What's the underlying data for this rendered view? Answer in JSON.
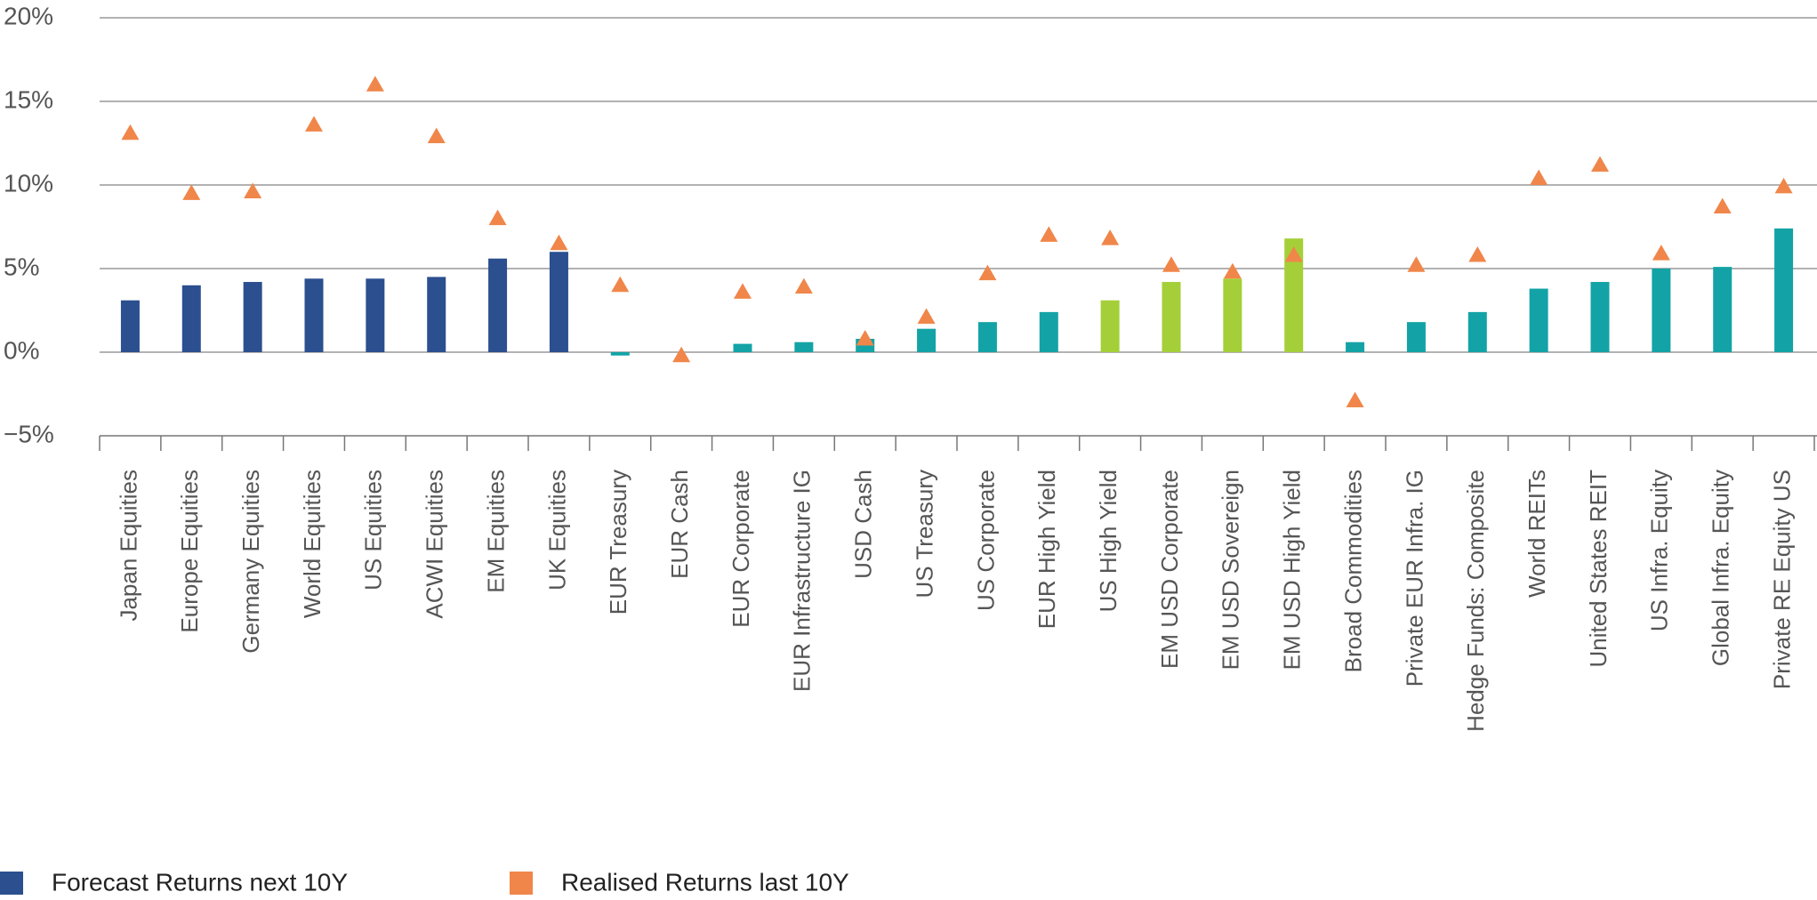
{
  "chart_data": {
    "type": "bar",
    "categories": [
      "Japan Equities",
      "Europe Equities",
      "Germany Equities",
      "World Equities",
      "US Equities",
      "ACWI Equities",
      "EM Equities",
      "UK Equities",
      "EUR Treasury",
      "EUR Cash",
      "EUR Corporate",
      "EUR Infrastructure IG",
      "USD Cash",
      "US Treasury",
      "US Corporate",
      "EUR High Yield",
      "US High Yield",
      "EM USD Corporate",
      "EM USD Sovereign",
      "EM USD High Yield",
      "Broad Commodities",
      "Private EUR Infra. IG",
      "Hedge Funds: Composite",
      "World REITs",
      "United States REIT",
      "US Infra. Equity",
      "Global Infra. Equity",
      "Private RE Equity US"
    ],
    "series": [
      {
        "name": "Forecast Returns next 10Y",
        "type": "bar",
        "color": "#2b4f8f",
        "colors": [
          "#2b4f8f",
          "#2b4f8f",
          "#2b4f8f",
          "#2b4f8f",
          "#2b4f8f",
          "#2b4f8f",
          "#2b4f8f",
          "#2b4f8f",
          "#13a3a6",
          "#13a3a6",
          "#13a3a6",
          "#13a3a6",
          "#13a3a6",
          "#13a3a6",
          "#13a3a6",
          "#13a3a6",
          "#a4cf38",
          "#a4cf38",
          "#a4cf38",
          "#a4cf38",
          "#13a3a6",
          "#13a3a6",
          "#13a3a6",
          "#13a3a6",
          "#13a3a6",
          "#13a3a6",
          "#13a3a6",
          "#13a3a6"
        ],
        "values": [
          3.1,
          4.0,
          4.2,
          4.4,
          4.4,
          4.5,
          5.6,
          6.0,
          -0.2,
          0.0,
          0.5,
          0.6,
          0.8,
          1.4,
          1.8,
          2.4,
          3.1,
          4.2,
          4.4,
          6.8,
          0.6,
          1.8,
          2.4,
          3.8,
          4.2,
          5.0,
          5.1,
          7.4
        ]
      },
      {
        "name": "Realised Returns last 10Y",
        "type": "marker",
        "color": "#f0864a",
        "values": [
          13.1,
          9.5,
          9.6,
          13.6,
          16.0,
          12.9,
          8.0,
          6.5,
          4.0,
          -0.2,
          3.6,
          3.9,
          0.8,
          2.1,
          4.7,
          7.0,
          6.8,
          5.2,
          4.8,
          5.8,
          -2.9,
          5.2,
          5.8,
          10.4,
          11.2,
          5.9,
          8.7,
          9.9
        ]
      }
    ],
    "ylim": [
      -5,
      20
    ],
    "yticks": [
      {
        "value": -5,
        "label": "−5%"
      },
      {
        "value": 0,
        "label": "0%"
      },
      {
        "value": 5,
        "label": "5%"
      },
      {
        "value": 10,
        "label": "10%"
      },
      {
        "value": 15,
        "label": "15%"
      },
      {
        "value": 20,
        "label": "20%"
      }
    ],
    "grid": true
  }
}
